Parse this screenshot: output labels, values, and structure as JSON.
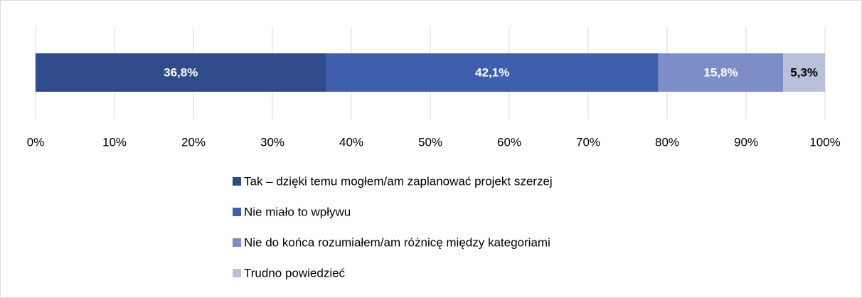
{
  "chart_data": {
    "type": "stacked-barh",
    "categories": [
      null
    ],
    "series": [
      {
        "name": "Tak – dzięki temu mogłem/am zaplanować projekt szerzej",
        "color": "#2f4b8a",
        "label_color": "#ffffff",
        "values": [
          36.8
        ],
        "value_labels": [
          "36,8%"
        ]
      },
      {
        "name": "Nie miało to wpływu",
        "color": "#3f5fae",
        "label_color": "#ffffff",
        "values": [
          42.1
        ],
        "value_labels": [
          "42,1%"
        ]
      },
      {
        "name": "Nie do końca rozumiałem/am różnicę między kategoriami",
        "color": "#7d8ec6",
        "label_color": "#ffffff",
        "values": [
          15.8
        ],
        "value_labels": [
          "15,8%"
        ]
      },
      {
        "name": "Trudno powiedzieć",
        "color": "#b8c0dc",
        "label_color": "#000000",
        "values": [
          5.3
        ],
        "value_labels": [
          "5,3%"
        ]
      }
    ],
    "xlim": [
      0,
      100
    ],
    "xticks": [
      {
        "value": 0,
        "label": "0%"
      },
      {
        "value": 10,
        "label": "10%"
      },
      {
        "value": 20,
        "label": "20%"
      },
      {
        "value": 30,
        "label": "30%"
      },
      {
        "value": 40,
        "label": "40%"
      },
      {
        "value": 50,
        "label": "50%"
      },
      {
        "value": 60,
        "label": "60%"
      },
      {
        "value": 70,
        "label": "70%"
      },
      {
        "value": 80,
        "label": "80%"
      },
      {
        "value": 90,
        "label": "90%"
      },
      {
        "value": 100,
        "label": "100%"
      }
    ],
    "grid": true,
    "legend": "bottom"
  }
}
